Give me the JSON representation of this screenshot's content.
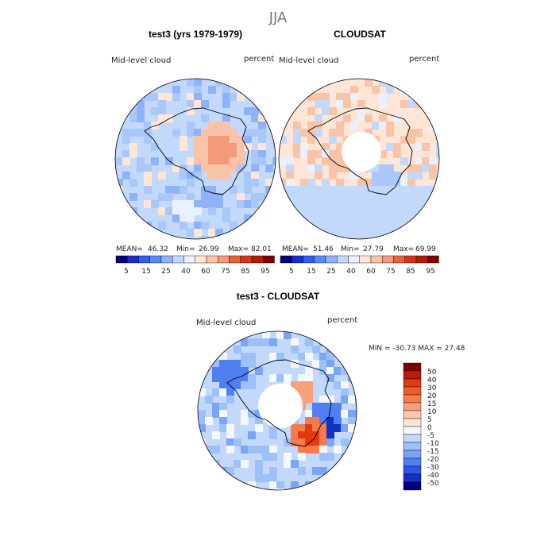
{
  "chart_data": {
    "type": "heatmap",
    "title": "JJA",
    "panels": [
      {
        "title": "test3 (yrs 1979-1979)",
        "variable": "Mid-level cloud",
        "units": "percent",
        "stats": {
          "mean_label": "MEAN=",
          "mean": "46.32",
          "min_label": "Min=",
          "min": "26.99",
          "max_label": "Max=",
          "max": "82.01"
        },
        "colorbar_ticks": [
          "5",
          "15",
          "25",
          "40",
          "60",
          "75",
          "85",
          "95"
        ]
      },
      {
        "title": "CLOUDSAT",
        "variable": "Mid-level cloud",
        "units": "percent",
        "stats": {
          "mean_label": "MEAN=",
          "mean": "51.46",
          "min_label": "Min=",
          "min": "27.79",
          "max_label": "Max=",
          "max": "69.99"
        },
        "colorbar_ticks": [
          "5",
          "15",
          "25",
          "40",
          "60",
          "75",
          "85",
          "95"
        ]
      },
      {
        "title": "test3 - CLOUDSAT",
        "variable": "Mid-level cloud",
        "units": "percent",
        "minmax_text": "MIN = -30.73 MAX =  27.48",
        "colorbar_ticks": [
          "50",
          "40",
          "30",
          "20",
          "15",
          "10",
          "5",
          "0",
          "-5",
          "-10",
          "-15",
          "-20",
          "-30",
          "-40",
          "-50"
        ]
      }
    ],
    "abs_colors": [
      "#000080",
      "#1a2ec8",
      "#2f5ff0",
      "#5a8af5",
      "#8fb3f8",
      "#c3d9fb",
      "#e8f1fd",
      "#fde6d6",
      "#f9c3a8",
      "#f39a7a",
      "#e8603d",
      "#d83418",
      "#b01c07",
      "#800000"
    ],
    "diff_colors": [
      "#800000",
      "#c01a05",
      "#e03a10",
      "#f05a28",
      "#f67a4a",
      "#f9a07a",
      "#fcc7ab",
      "#fde6d6",
      "#f3f8fd",
      "#c3d9fb",
      "#9ec0f9",
      "#7aa4f5",
      "#4f7ff0",
      "#2a55e8",
      "#1030c8",
      "#000080"
    ]
  }
}
